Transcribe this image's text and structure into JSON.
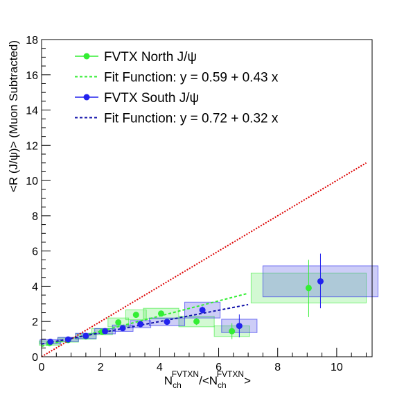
{
  "chart_data": {
    "type": "scatter",
    "xlabel_main": "N",
    "xlabel_sub1": "ch",
    "xlabel_sup1": "FVTXN",
    "xlabel_mid": "/<N",
    "xlabel_sub2": "ch",
    "xlabel_sup2": "FVTXN",
    "xlabel_end": ">",
    "ylabel": "<R (J/ψ)> (Muon Subtracted)",
    "xlim": [
      0,
      11.2
    ],
    "ylim": [
      0,
      18
    ],
    "x_ticks": [
      0,
      2,
      4,
      6,
      8,
      10
    ],
    "y_ticks": [
      0,
      2,
      4,
      6,
      8,
      10,
      12,
      14,
      16,
      18
    ],
    "grid": false,
    "legend_position": "top-left",
    "legend": [
      {
        "label": "FVTX North J/ψ",
        "kind": "marker",
        "color": "#33ee33"
      },
      {
        "label": "Fit Function: y = 0.59 + 0.43 x",
        "kind": "dashed",
        "color": "#33ee33"
      },
      {
        "label": "FVTX South J/ψ",
        "kind": "marker",
        "color": "#2222ee"
      },
      {
        "label": "Fit Function: y = 0.72 + 0.32 x",
        "kind": "dashed",
        "color": "#1111aa"
      }
    ],
    "series": [
      {
        "name": "FVTX North J/ψ",
        "color": "#33ee33",
        "box_fill": "rgba(80,230,80,0.25)",
        "points": [
          {
            "x": 0.27,
            "y": 0.78,
            "ylo": 0.7,
            "yhi": 0.86,
            "sx": 0.35,
            "sy": 0.12
          },
          {
            "x": 0.9,
            "y": 0.95,
            "ylo": 0.88,
            "yhi": 1.02,
            "sx": 0.35,
            "sy": 0.12
          },
          {
            "x": 1.5,
            "y": 1.15,
            "ylo": 1.05,
            "yhi": 1.25,
            "sx": 0.35,
            "sy": 0.15
          },
          {
            "x": 2.05,
            "y": 1.42,
            "ylo": 1.32,
            "yhi": 1.52,
            "sx": 0.35,
            "sy": 0.18
          },
          {
            "x": 2.6,
            "y": 1.95,
            "ylo": 1.83,
            "yhi": 2.07,
            "sx": 0.35,
            "sy": 0.25
          },
          {
            "x": 3.2,
            "y": 2.38,
            "ylo": 2.25,
            "yhi": 2.51,
            "sx": 0.35,
            "sy": 0.28
          },
          {
            "x": 4.05,
            "y": 2.45,
            "ylo": 2.3,
            "yhi": 2.6,
            "sx": 0.6,
            "sy": 0.3
          },
          {
            "x": 5.25,
            "y": 2.0,
            "ylo": 1.8,
            "yhi": 2.2,
            "sx": 0.6,
            "sy": 0.3
          },
          {
            "x": 6.45,
            "y": 1.45,
            "ylo": 1.0,
            "yhi": 1.9,
            "sx": 0.6,
            "sy": 0.3
          },
          {
            "x": 9.05,
            "y": 3.9,
            "ylo": 2.25,
            "yhi": 5.5,
            "sx": 1.95,
            "sy": 0.85
          }
        ]
      },
      {
        "name": "FVTX South J/ψ",
        "color": "#2222ee",
        "box_fill": "rgba(90,90,230,0.30)",
        "points": [
          {
            "x": 0.3,
            "y": 0.85,
            "ylo": 0.77,
            "yhi": 0.93,
            "sx": 0.35,
            "sy": 0.12
          },
          {
            "x": 0.9,
            "y": 0.98,
            "ylo": 0.91,
            "yhi": 1.05,
            "sx": 0.35,
            "sy": 0.12
          },
          {
            "x": 1.5,
            "y": 1.18,
            "ylo": 1.08,
            "yhi": 1.28,
            "sx": 0.35,
            "sy": 0.15
          },
          {
            "x": 2.15,
            "y": 1.45,
            "ylo": 1.35,
            "yhi": 1.55,
            "sx": 0.35,
            "sy": 0.15
          },
          {
            "x": 2.75,
            "y": 1.62,
            "ylo": 1.5,
            "yhi": 1.74,
            "sx": 0.35,
            "sy": 0.18
          },
          {
            "x": 3.35,
            "y": 1.85,
            "ylo": 1.72,
            "yhi": 1.98,
            "sx": 0.35,
            "sy": 0.2
          },
          {
            "x": 4.25,
            "y": 1.98,
            "ylo": 1.83,
            "yhi": 2.13,
            "sx": 0.6,
            "sy": 0.22
          },
          {
            "x": 5.45,
            "y": 2.65,
            "ylo": 2.45,
            "yhi": 2.85,
            "sx": 0.6,
            "sy": 0.45
          },
          {
            "x": 6.7,
            "y": 1.75,
            "ylo": 1.1,
            "yhi": 2.4,
            "sx": 0.6,
            "sy": 0.38
          },
          {
            "x": 9.45,
            "y": 4.28,
            "ylo": 2.75,
            "yhi": 5.85,
            "sx": 1.95,
            "sy": 0.88
          }
        ]
      }
    ],
    "fits": [
      {
        "name": "Fit Function: y = 0.59 + 0.43 x",
        "intercept": 0.59,
        "slope": 0.43,
        "x_range": [
          0,
          7.0
        ],
        "color": "#33ee33"
      },
      {
        "name": "Fit Function: y = 0.72 + 0.32 x",
        "intercept": 0.72,
        "slope": 0.32,
        "x_range": [
          0,
          7.0
        ],
        "color": "#1111aa"
      }
    ],
    "reference_line": {
      "intercept": 0,
      "slope": 1,
      "x_range": [
        0,
        11.0
      ],
      "color": "#dd0000"
    }
  }
}
